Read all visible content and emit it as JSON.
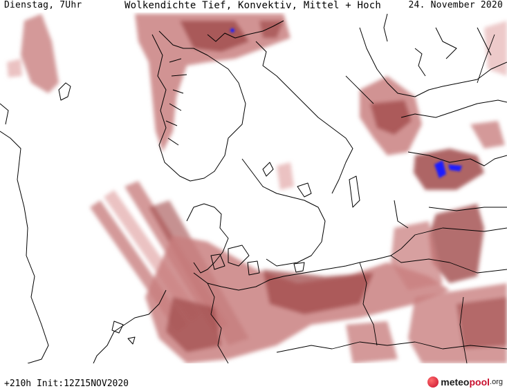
{
  "header": {
    "left": "Dienstag, 7Uhr",
    "center": "Wolkendichte  Tief, Konvektiv, Mittel + Hoch",
    "right": "24. November 2020"
  },
  "footer": {
    "run": "+210h Init:12Z15NOV2020",
    "logo_meteo": "meteo",
    "logo_pool": "pool",
    "logo_org": ".org"
  },
  "colors": {
    "cloud_light": "#e6b3b3",
    "cloud_mid": "#c98080",
    "cloud_dark": "#a04a4a",
    "precip": "#1f1fff",
    "coast": "#000000"
  },
  "map": {
    "icon": "weather-map",
    "region": "North Sea / Baltic",
    "product": "cloud density"
  }
}
